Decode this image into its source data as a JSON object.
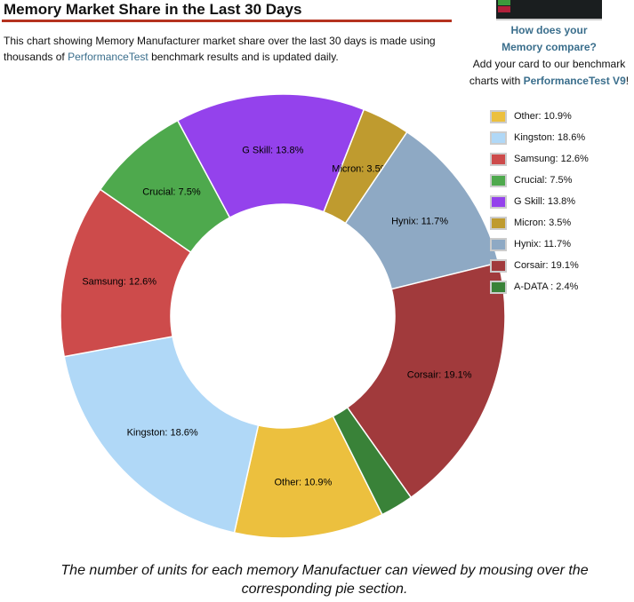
{
  "header": {
    "title": "Memory Market Share in the Last 30 Days",
    "desc_pre": "This chart showing Memory Manufacturer market share over the last 30 days is made using thousands of ",
    "desc_link": "PerformanceTest",
    "desc_post": " benchmark results and is updated daily."
  },
  "promo": {
    "line1": "How does your",
    "line2": "Memory compare?",
    "line3": "Add your card to our benchmark",
    "line4_pre": "charts with ",
    "line4_link": "PerformanceTest V9",
    "line4_post": "!"
  },
  "caption": "The number of units for each memory Manufactuer can viewed by mousing over the corresponding pie section.",
  "chart_data": {
    "type": "pie",
    "donut": true,
    "title": "Memory Market Share in the Last 30 Days",
    "legend": "right",
    "categories": [
      "Other",
      "Kingston",
      "Samsung",
      "Crucial",
      "G Skill",
      "Micron",
      "Hynix",
      "Corsair",
      "A-DATA "
    ],
    "values": [
      10.9,
      18.6,
      12.6,
      7.5,
      13.8,
      3.5,
      11.7,
      19.1,
      2.4
    ],
    "labels": [
      "Other: 10.9%",
      "Kingston: 18.6%",
      "Samsung: 12.6%",
      "Crucial: 7.5%",
      "G Skill: 13.8%",
      "Micron: 3.5%",
      "Hynix: 11.7%",
      "Corsair: 19.1%",
      "A-DATA : 2.4%"
    ],
    "colors": [
      "#ecc03e",
      "#b0d8f7",
      "#cd4b4b",
      "#4ea94d",
      "#9442ec",
      "#bf9b2f",
      "#8ea9c4",
      "#a13a3c",
      "#398238"
    ]
  }
}
